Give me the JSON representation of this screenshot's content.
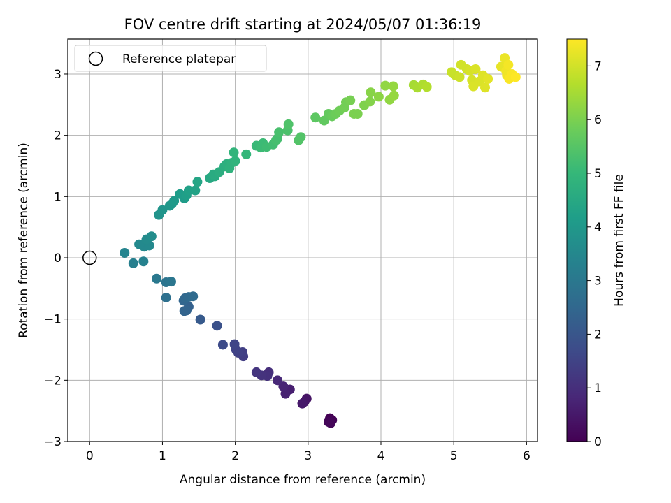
{
  "chart_data": {
    "type": "scatter",
    "title": "FOV centre drift starting at 2024/05/07 01:36:19",
    "xlabel": "Angular distance from reference (arcmin)",
    "ylabel": "Rotation from reference (arcmin)",
    "xlim": [
      -0.3,
      6.15
    ],
    "ylim": [
      -3.0,
      3.57
    ],
    "xticks": [
      0,
      1,
      2,
      3,
      4,
      5,
      6
    ],
    "yticks": [
      -3,
      -2,
      -1,
      0,
      1,
      2,
      3
    ],
    "xtick_labels": [
      "0",
      "1",
      "2",
      "3",
      "4",
      "5",
      "6"
    ],
    "ytick_labels": [
      "−3",
      "−2",
      "−1",
      "0",
      "1",
      "2",
      "3"
    ],
    "grid": true,
    "legend": {
      "position": "top-left",
      "entries": [
        "Reference platepar"
      ]
    },
    "reference_point": {
      "x": 0,
      "y": 0,
      "label": "Reference platepar"
    },
    "colorbar": {
      "label": "Hours from first FF file",
      "range": [
        0,
        7.5
      ],
      "ticks": [
        0,
        1,
        2,
        3,
        4,
        5,
        6,
        7
      ],
      "tick_labels": [
        "0",
        "1",
        "2",
        "3",
        "4",
        "5",
        "6",
        "7"
      ],
      "colormap": "viridis",
      "colors": [
        "#440154",
        "#482878",
        "#3e4a89",
        "#31688e",
        "#26828e",
        "#1f9e89",
        "#35b779",
        "#6dcd59",
        "#b4de2c",
        "#fde725"
      ]
    },
    "points": [
      {
        "x": 3.3,
        "y": -2.62,
        "c": 0.0
      },
      {
        "x": 3.33,
        "y": -2.65,
        "c": 0.05
      },
      {
        "x": 3.28,
        "y": -2.68,
        "c": 0.1
      },
      {
        "x": 3.31,
        "y": -2.7,
        "c": 0.12
      },
      {
        "x": 2.98,
        "y": -2.3,
        "c": 0.4
      },
      {
        "x": 2.95,
        "y": -2.35,
        "c": 0.45
      },
      {
        "x": 2.92,
        "y": -2.38,
        "c": 0.5
      },
      {
        "x": 2.75,
        "y": -2.15,
        "c": 0.65
      },
      {
        "x": 2.69,
        "y": -2.22,
        "c": 0.7
      },
      {
        "x": 2.66,
        "y": -2.1,
        "c": 0.75
      },
      {
        "x": 2.58,
        "y": -2.0,
        "c": 0.85
      },
      {
        "x": 2.46,
        "y": -1.87,
        "c": 1.0
      },
      {
        "x": 2.44,
        "y": -1.93,
        "c": 1.05
      },
      {
        "x": 2.36,
        "y": -1.92,
        "c": 1.1
      },
      {
        "x": 2.29,
        "y": -1.87,
        "c": 1.15
      },
      {
        "x": 2.11,
        "y": -1.61,
        "c": 1.35
      },
      {
        "x": 2.1,
        "y": -1.54,
        "c": 1.4
      },
      {
        "x": 2.04,
        "y": -1.55,
        "c": 1.45
      },
      {
        "x": 2.01,
        "y": -1.5,
        "c": 1.5
      },
      {
        "x": 1.99,
        "y": -1.41,
        "c": 1.55
      },
      {
        "x": 1.83,
        "y": -1.42,
        "c": 1.7
      },
      {
        "x": 1.75,
        "y": -1.11,
        "c": 1.85
      },
      {
        "x": 1.52,
        "y": -1.01,
        "c": 2.1
      },
      {
        "x": 1.36,
        "y": -0.8,
        "c": 2.3
      },
      {
        "x": 1.33,
        "y": -0.86,
        "c": 2.35
      },
      {
        "x": 1.3,
        "y": -0.87,
        "c": 2.4
      },
      {
        "x": 1.29,
        "y": -0.7,
        "c": 2.45
      },
      {
        "x": 1.31,
        "y": -0.66,
        "c": 2.5
      },
      {
        "x": 1.36,
        "y": -0.64,
        "c": 2.55
      },
      {
        "x": 1.42,
        "y": -0.63,
        "c": 2.6
      },
      {
        "x": 1.05,
        "y": -0.65,
        "c": 2.75
      },
      {
        "x": 1.05,
        "y": -0.4,
        "c": 2.9
      },
      {
        "x": 1.12,
        "y": -0.39,
        "c": 2.95
      },
      {
        "x": 0.92,
        "y": -0.34,
        "c": 3.0
      },
      {
        "x": 0.6,
        "y": -0.09,
        "c": 3.25
      },
      {
        "x": 0.74,
        "y": -0.06,
        "c": 3.3
      },
      {
        "x": 0.48,
        "y": 0.08,
        "c": 3.4
      },
      {
        "x": 0.75,
        "y": 0.18,
        "c": 3.5
      },
      {
        "x": 0.82,
        "y": 0.2,
        "c": 3.55
      },
      {
        "x": 0.68,
        "y": 0.22,
        "c": 3.55
      },
      {
        "x": 0.78,
        "y": 0.3,
        "c": 3.6
      },
      {
        "x": 0.85,
        "y": 0.35,
        "c": 3.65
      },
      {
        "x": 0.95,
        "y": 0.7,
        "c": 3.85
      },
      {
        "x": 1.0,
        "y": 0.78,
        "c": 3.9
      },
      {
        "x": 1.1,
        "y": 0.85,
        "c": 3.95
      },
      {
        "x": 1.13,
        "y": 0.88,
        "c": 4.0
      },
      {
        "x": 1.16,
        "y": 0.93,
        "c": 4.05
      },
      {
        "x": 1.3,
        "y": 0.97,
        "c": 4.1
      },
      {
        "x": 1.24,
        "y": 1.04,
        "c": 4.15
      },
      {
        "x": 1.33,
        "y": 1.02,
        "c": 4.2
      },
      {
        "x": 1.36,
        "y": 1.1,
        "c": 4.25
      },
      {
        "x": 1.45,
        "y": 1.1,
        "c": 4.3
      },
      {
        "x": 1.48,
        "y": 1.24,
        "c": 4.4
      },
      {
        "x": 1.65,
        "y": 1.3,
        "c": 4.5
      },
      {
        "x": 1.72,
        "y": 1.33,
        "c": 4.55
      },
      {
        "x": 1.7,
        "y": 1.36,
        "c": 4.6
      },
      {
        "x": 1.78,
        "y": 1.4,
        "c": 4.65
      },
      {
        "x": 1.85,
        "y": 1.49,
        "c": 4.7
      },
      {
        "x": 1.88,
        "y": 1.53,
        "c": 4.75
      },
      {
        "x": 1.92,
        "y": 1.46,
        "c": 4.8
      },
      {
        "x": 1.95,
        "y": 1.55,
        "c": 4.8
      },
      {
        "x": 2.0,
        "y": 1.58,
        "c": 4.85
      },
      {
        "x": 1.98,
        "y": 1.72,
        "c": 4.9
      },
      {
        "x": 2.15,
        "y": 1.69,
        "c": 4.95
      },
      {
        "x": 2.29,
        "y": 1.83,
        "c": 5.05
      },
      {
        "x": 2.35,
        "y": 1.8,
        "c": 5.1
      },
      {
        "x": 2.38,
        "y": 1.87,
        "c": 5.1
      },
      {
        "x": 2.43,
        "y": 1.81,
        "c": 5.15
      },
      {
        "x": 2.52,
        "y": 1.85,
        "c": 5.2
      },
      {
        "x": 2.56,
        "y": 1.92,
        "c": 5.25
      },
      {
        "x": 2.58,
        "y": 1.95,
        "c": 5.25
      },
      {
        "x": 2.6,
        "y": 2.05,
        "c": 5.3
      },
      {
        "x": 2.72,
        "y": 2.08,
        "c": 5.35
      },
      {
        "x": 2.73,
        "y": 2.18,
        "c": 5.4
      },
      {
        "x": 2.87,
        "y": 1.92,
        "c": 5.45
      },
      {
        "x": 2.9,
        "y": 1.97,
        "c": 5.45
      },
      {
        "x": 3.1,
        "y": 2.29,
        "c": 5.6
      },
      {
        "x": 3.22,
        "y": 2.24,
        "c": 5.65
      },
      {
        "x": 3.28,
        "y": 2.35,
        "c": 5.7
      },
      {
        "x": 3.33,
        "y": 2.31,
        "c": 5.75
      },
      {
        "x": 3.38,
        "y": 2.35,
        "c": 5.8
      },
      {
        "x": 3.43,
        "y": 2.4,
        "c": 5.85
      },
      {
        "x": 3.5,
        "y": 2.45,
        "c": 5.9
      },
      {
        "x": 3.52,
        "y": 2.54,
        "c": 5.9
      },
      {
        "x": 3.58,
        "y": 2.57,
        "c": 5.95
      },
      {
        "x": 3.63,
        "y": 2.35,
        "c": 6.0
      },
      {
        "x": 3.68,
        "y": 2.35,
        "c": 6.0
      },
      {
        "x": 3.77,
        "y": 2.49,
        "c": 6.05
      },
      {
        "x": 3.85,
        "y": 2.55,
        "c": 6.1
      },
      {
        "x": 3.86,
        "y": 2.7,
        "c": 6.15
      },
      {
        "x": 3.97,
        "y": 2.63,
        "c": 6.2
      },
      {
        "x": 4.06,
        "y": 2.81,
        "c": 6.25
      },
      {
        "x": 4.12,
        "y": 2.58,
        "c": 6.25
      },
      {
        "x": 4.18,
        "y": 2.65,
        "c": 6.3
      },
      {
        "x": 4.17,
        "y": 2.8,
        "c": 6.3
      },
      {
        "x": 4.45,
        "y": 2.82,
        "c": 6.5
      },
      {
        "x": 4.5,
        "y": 2.78,
        "c": 6.55
      },
      {
        "x": 4.58,
        "y": 2.83,
        "c": 6.6
      },
      {
        "x": 4.63,
        "y": 2.79,
        "c": 6.65
      },
      {
        "x": 4.97,
        "y": 3.03,
        "c": 6.9
      },
      {
        "x": 5.02,
        "y": 2.98,
        "c": 6.9
      },
      {
        "x": 5.08,
        "y": 2.95,
        "c": 6.95
      },
      {
        "x": 5.1,
        "y": 3.15,
        "c": 7.0
      },
      {
        "x": 5.18,
        "y": 3.08,
        "c": 7.0
      },
      {
        "x": 5.22,
        "y": 3.05,
        "c": 7.05
      },
      {
        "x": 5.25,
        "y": 2.9,
        "c": 7.05
      },
      {
        "x": 5.3,
        "y": 3.08,
        "c": 7.1
      },
      {
        "x": 5.27,
        "y": 2.8,
        "c": 7.1
      },
      {
        "x": 5.35,
        "y": 2.88,
        "c": 7.1
      },
      {
        "x": 5.4,
        "y": 2.98,
        "c": 7.15
      },
      {
        "x": 5.43,
        "y": 2.78,
        "c": 7.15
      },
      {
        "x": 5.47,
        "y": 2.92,
        "c": 7.2
      },
      {
        "x": 5.65,
        "y": 3.12,
        "c": 7.25
      },
      {
        "x": 5.7,
        "y": 3.26,
        "c": 7.3
      },
      {
        "x": 5.72,
        "y": 3.05,
        "c": 7.35
      },
      {
        "x": 5.73,
        "y": 2.98,
        "c": 7.35
      },
      {
        "x": 5.75,
        "y": 3.15,
        "c": 7.4
      },
      {
        "x": 5.76,
        "y": 2.92,
        "c": 7.45
      },
      {
        "x": 5.8,
        "y": 3.0,
        "c": 7.45
      },
      {
        "x": 5.85,
        "y": 2.95,
        "c": 7.5
      }
    ]
  }
}
